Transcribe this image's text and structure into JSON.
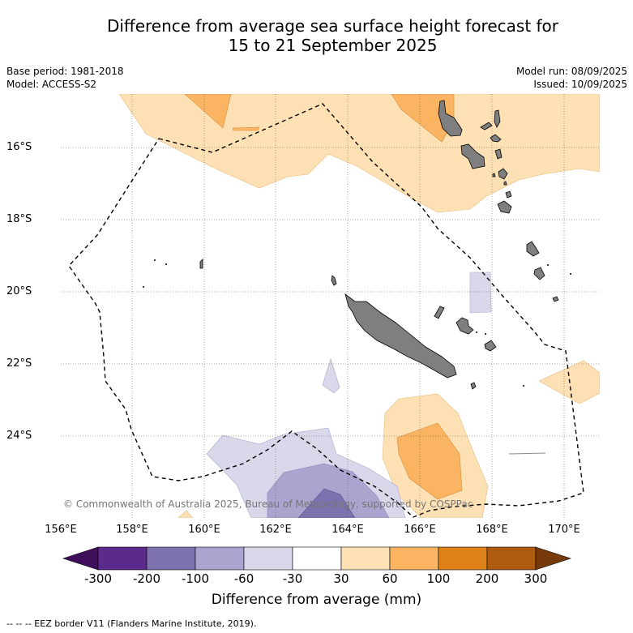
{
  "title_line1": "Difference from average sea surface height forecast for",
  "title_line2": "15 to 21 September 2025",
  "meta_left": {
    "base_period": "Base period: 1981-2018",
    "model": "Model: ACCESS-S2"
  },
  "meta_right": {
    "model_run": "Model run: 08/09/2025",
    "issued": "Issued: 10/09/2025"
  },
  "copyright": "© Commonwealth of Australia 2025, Bureau of Meteorology, supported by COSPPac",
  "latitude_labels": [
    "16°S",
    "18°S",
    "20°S",
    "22°S",
    "24°S"
  ],
  "longitude_labels": [
    "156°E",
    "158°E",
    "160°E",
    "162°E",
    "164°E",
    "166°E",
    "168°E",
    "170°E"
  ],
  "colorbar": {
    "title": "Difference from average (mm)",
    "tick_labels": [
      "-300",
      "-200",
      "-100",
      "-60",
      "-30",
      "30",
      "60",
      "100",
      "200",
      "300"
    ],
    "colors": [
      "#3f0f5b",
      "#5a2a8c",
      "#7e72ae",
      "#aba4cf",
      "#d8d8ea",
      "#ffffff",
      "#fde1b4",
      "#fbb462",
      "#e0821a",
      "#ae5a0f",
      "#763a0a"
    ]
  },
  "footer": "--  --  -- EEZ border V11 (Flanders Marine Institute, 2019)."
}
